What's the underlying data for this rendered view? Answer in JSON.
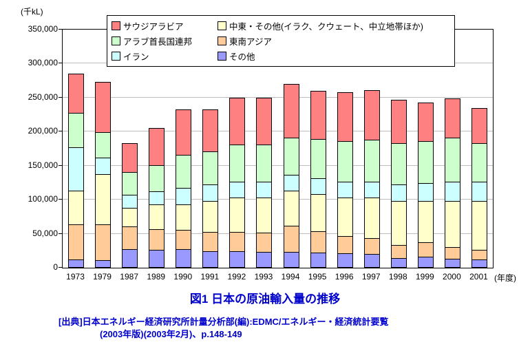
{
  "chart": {
    "y_unit": "(千kL)",
    "x_unit": "(年度)",
    "title": "図1 日本の原油輸入量の推移",
    "source_line1": "[出典]日本エネルギー経済研究所計量分析部(編):EDMC/エネルギー・経済統計要覧",
    "source_line2": "(2003年版)(2003年2月)、p.148-149",
    "accent_text_color": "#0000cc",
    "gridline_color": "#bdbdbd"
  },
  "chart_data": {
    "type": "bar",
    "stacked": true,
    "title": "図1 日本の原油輸入量の推移",
    "xlabel": "(年度)",
    "ylabel": "(千kL)",
    "ylim": [
      0,
      350000
    ],
    "ytick_step": 50000,
    "grid": true,
    "legend_position": "top",
    "categories": [
      1973,
      1979,
      1987,
      1989,
      1990,
      1991,
      1992,
      1993,
      1994,
      1995,
      1996,
      1997,
      1998,
      1999,
      2000,
      2001
    ],
    "legend": [
      {
        "label": "サウジアラビア",
        "color": "#FF8080"
      },
      {
        "label": "中東・その他(イラク、クウェート、中立地帯ほか)",
        "color": "#FFFFCC"
      },
      {
        "label": "アラブ首長国連邦",
        "color": "#CCFFCC"
      },
      {
        "label": "東南アジア",
        "color": "#FFCC99"
      },
      {
        "label": "イラン",
        "color": "#CCFFFF"
      },
      {
        "label": "その他",
        "color": "#9999FF"
      }
    ],
    "series_stack_order": "bottom-to-top",
    "series": [
      {
        "name": "その他",
        "color": "#9999FF",
        "values": [
          12000,
          11000,
          27000,
          26000,
          27000,
          24000,
          24000,
          23000,
          23000,
          22000,
          21000,
          20000,
          14000,
          16000,
          13000,
          12000
        ]
      },
      {
        "name": "東南アジア",
        "color": "#FFCC99",
        "values": [
          53000,
          54000,
          35000,
          32000,
          30000,
          30000,
          30000,
          30000,
          40000,
          33000,
          27000,
          25000,
          20000,
          22000,
          18000,
          15000
        ]
      },
      {
        "name": "中東・その他(イラク、クウェート、中立地帯ほか)",
        "color": "#FFFFCC",
        "values": [
          50000,
          75000,
          28000,
          37000,
          38000,
          46000,
          51000,
          52000,
          52000,
          55000,
          57000,
          60000,
          66000,
          62000,
          69000,
          73000
        ]
      },
      {
        "name": "イラン",
        "color": "#CCFFFF",
        "values": [
          65000,
          25000,
          20000,
          20000,
          25000,
          25000,
          25000,
          25000,
          25000,
          25000,
          25000,
          25000,
          25000,
          28000,
          30000,
          30000
        ]
      },
      {
        "name": "アラブ首長国連邦",
        "color": "#CCFFCC",
        "values": [
          52000,
          38000,
          35000,
          40000,
          50000,
          50000,
          55000,
          55000,
          55000,
          58000,
          60000,
          62000,
          62000,
          62000,
          65000,
          57000
        ]
      },
      {
        "name": "サウジアラビア",
        "color": "#FF8080",
        "values": [
          58000,
          75000,
          43000,
          55000,
          68000,
          63000,
          70000,
          70000,
          80000,
          72000,
          73000,
          74000,
          65000,
          58000,
          59000,
          53000
        ]
      }
    ]
  }
}
